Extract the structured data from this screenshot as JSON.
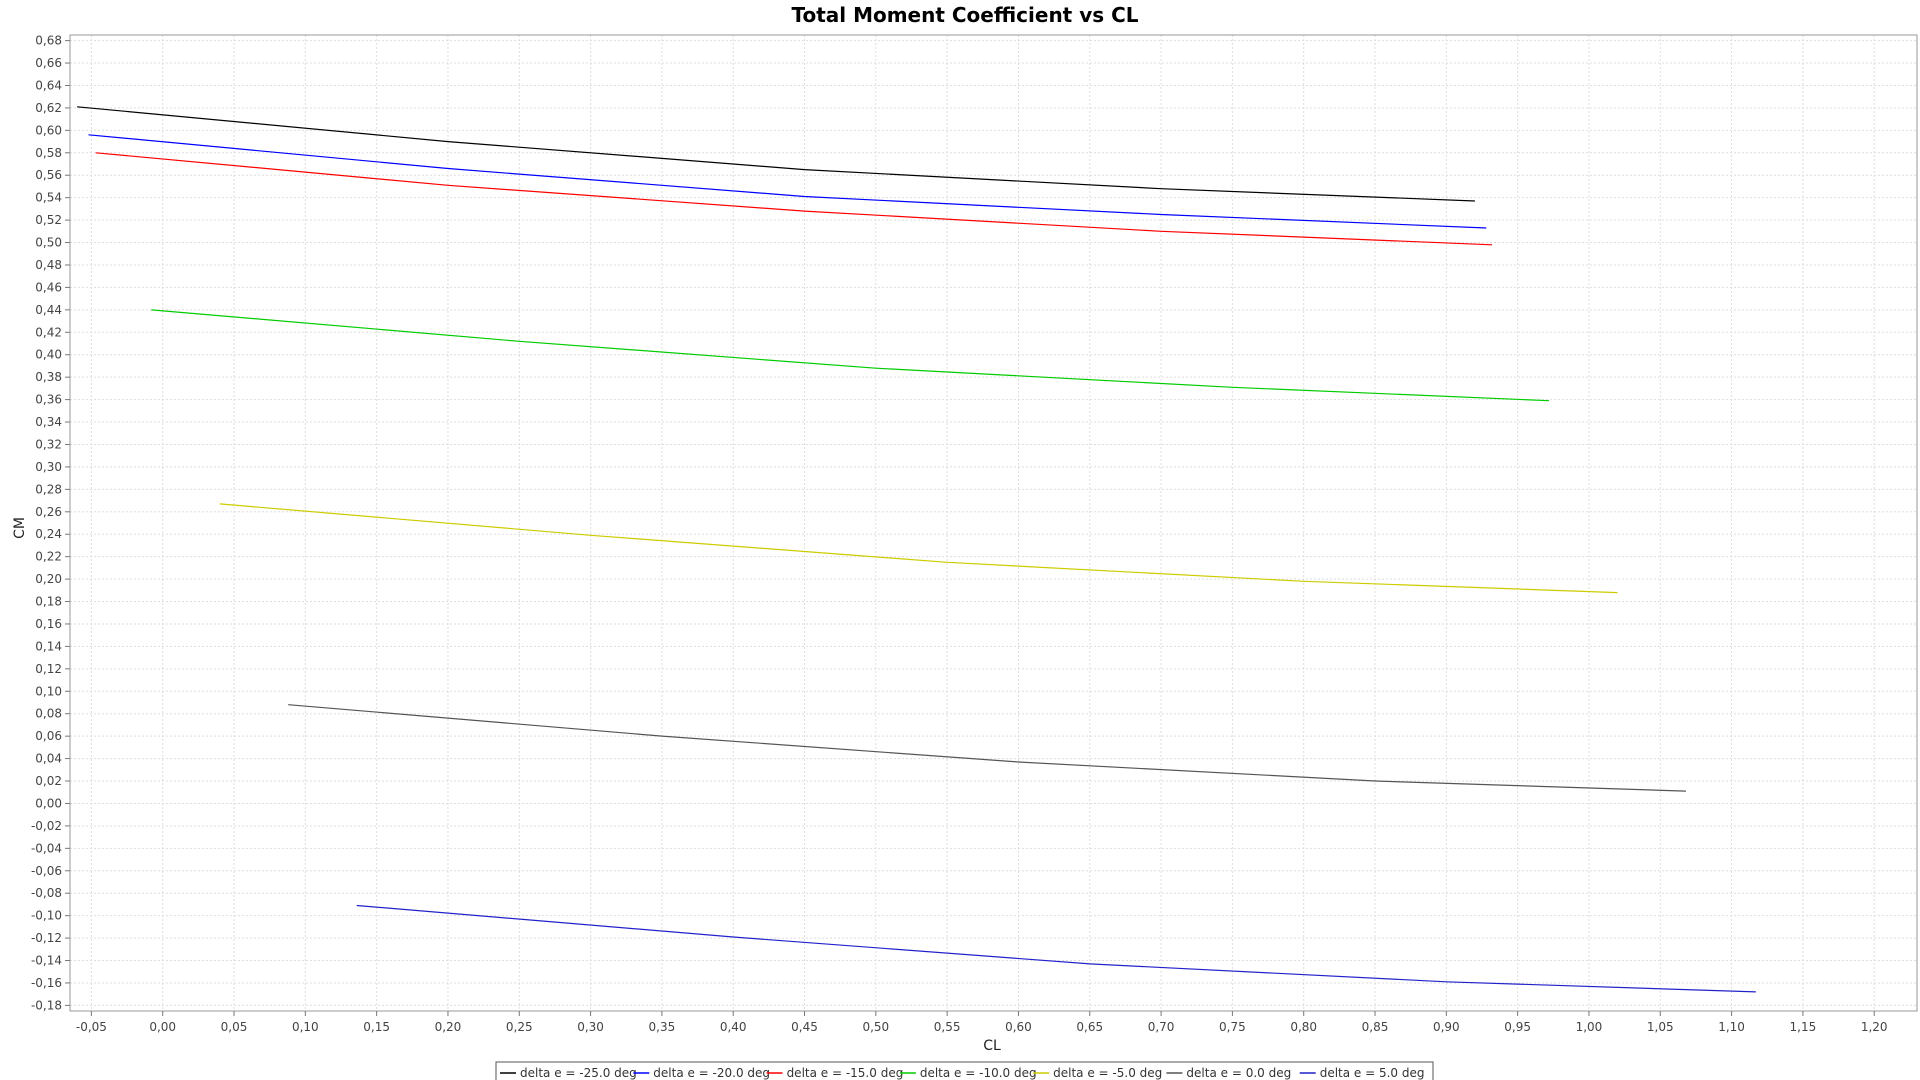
{
  "chart_data": {
    "type": "line",
    "title": "Total Moment Coefficient vs CL",
    "xlabel": "CL",
    "ylabel": "CM",
    "xlim": [
      -0.065,
      1.23
    ],
    "ylim": [
      -0.185,
      0.685
    ],
    "x_ticks": [
      "-0,05",
      "0,00",
      "0,05",
      "0,10",
      "0,15",
      "0,20",
      "0,25",
      "0,30",
      "0,35",
      "0,40",
      "0,45",
      "0,50",
      "0,55",
      "0,60",
      "0,65",
      "0,70",
      "0,75",
      "0,80",
      "0,85",
      "0,90",
      "0,95",
      "1,00",
      "1,05",
      "1,10",
      "1,15",
      "1,20"
    ],
    "y_ticks": [
      "-0,18",
      "-0,16",
      "-0,14",
      "-0,12",
      "-0,10",
      "-0,08",
      "-0,06",
      "-0,04",
      "-0,02",
      "0,00",
      "0,02",
      "0,04",
      "0,06",
      "0,08",
      "0,10",
      "0,12",
      "0,14",
      "0,16",
      "0,18",
      "0,20",
      "0,22",
      "0,24",
      "0,26",
      "0,28",
      "0,30",
      "0,32",
      "0,34",
      "0,36",
      "0,38",
      "0,40",
      "0,42",
      "0,44",
      "0,46",
      "0,48",
      "0,50",
      "0,52",
      "0,54",
      "0,56",
      "0,58",
      "0,60",
      "0,62",
      "0,64",
      "0,66",
      "0,68"
    ],
    "grid": true,
    "legend_position": "bottom",
    "series": [
      {
        "name": "delta e =  -25.0 deg",
        "color": "#000000",
        "x": [
          -0.06,
          0.2,
          0.45,
          0.7,
          0.92
        ],
        "y": [
          0.621,
          0.59,
          0.565,
          0.548,
          0.537
        ]
      },
      {
        "name": "delta e =  -20.0 deg",
        "color": "#0000ff",
        "x": [
          -0.052,
          0.2,
          0.45,
          0.7,
          0.928
        ],
        "y": [
          0.596,
          0.566,
          0.541,
          0.525,
          0.513
        ]
      },
      {
        "name": "delta e =  -15.0 deg",
        "color": "#ff0000",
        "x": [
          -0.047,
          0.2,
          0.45,
          0.7,
          0.932
        ],
        "y": [
          0.58,
          0.551,
          0.528,
          0.51,
          0.498
        ]
      },
      {
        "name": "delta e =  -10.0 deg",
        "color": "#00cc00",
        "x": [
          -0.008,
          0.25,
          0.5,
          0.75,
          0.972
        ],
        "y": [
          0.44,
          0.412,
          0.388,
          0.371,
          0.359
        ]
      },
      {
        "name": "delta e =  -5.0 deg",
        "color": "#cccc00",
        "x": [
          0.04,
          0.3,
          0.55,
          0.8,
          1.02
        ],
        "y": [
          0.267,
          0.239,
          0.215,
          0.198,
          0.188
        ]
      },
      {
        "name": "delta e =  0.0 deg",
        "color": "#555555",
        "x": [
          0.088,
          0.35,
          0.6,
          0.85,
          1.068
        ],
        "y": [
          0.088,
          0.06,
          0.037,
          0.02,
          0.011
        ]
      },
      {
        "name": "delta e =  5.0 deg",
        "color": "#2222cc",
        "x": [
          0.136,
          0.4,
          0.65,
          0.9,
          1.117
        ],
        "y": [
          -0.091,
          -0.119,
          -0.143,
          -0.159,
          -0.168
        ]
      }
    ]
  }
}
